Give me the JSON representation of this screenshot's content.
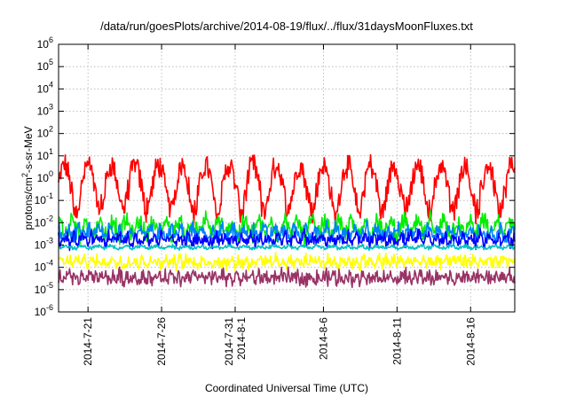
{
  "chart_data": {
    "type": "line",
    "title": "/data/run/goesPlots/archive/2014-08-19/flux/../flux/31daysMoonFluxes.txt",
    "xlabel": "Coordinated Universal Time (UTC)",
    "ylabel_prefix": "protons/cm",
    "ylabel_sup": "2",
    "ylabel_suffix": "-s-sr-MeV",
    "y_scale": "log",
    "ylim": [
      1e-06,
      1000000.0
    ],
    "y_ticks": [
      {
        "base": "10",
        "exp": "-6",
        "value": 1e-06
      },
      {
        "base": "10",
        "exp": "-5",
        "value": 1e-05
      },
      {
        "base": "10",
        "exp": "-4",
        "value": 0.0001
      },
      {
        "base": "10",
        "exp": "-3",
        "value": 0.001
      },
      {
        "base": "10",
        "exp": "-2",
        "value": 0.01
      },
      {
        "base": "10",
        "exp": "-1",
        "value": 0.1
      },
      {
        "base": "10",
        "exp": "0",
        "value": 1
      },
      {
        "base": "10",
        "exp": "1",
        "value": 10
      },
      {
        "base": "10",
        "exp": "2",
        "value": 100
      },
      {
        "base": "10",
        "exp": "3",
        "value": 1000
      },
      {
        "base": "10",
        "exp": "4",
        "value": 10000
      },
      {
        "base": "10",
        "exp": "5",
        "value": 100000
      },
      {
        "base": "10",
        "exp": "6",
        "value": 1000000
      }
    ],
    "xlim": [
      "2014-07-19",
      "2014-08-19"
    ],
    "x_ticks": [
      {
        "date": "2014-07-21",
        "labels": [
          "2014-7-21"
        ]
      },
      {
        "date": "2014-07-26",
        "labels": [
          "2014-7-26"
        ]
      },
      {
        "date": "2014-07-31",
        "labels": [
          "2014-7-31",
          "2014-8-1"
        ]
      },
      {
        "date": "2014-08-06",
        "labels": [
          "2014-8-6"
        ]
      },
      {
        "date": "2014-08-11",
        "labels": [
          "2014-8-11"
        ]
      },
      {
        "date": "2014-08-16",
        "labels": [
          "2014-8-16"
        ]
      }
    ],
    "grid": true,
    "legend": "none",
    "series": [
      {
        "color": "#ff0000",
        "center": 0.5,
        "spread": 1.0,
        "oscillation": 0.9,
        "period_days": 1.6,
        "noise": 0.25
      },
      {
        "color": "#00ee00",
        "center": 0.006,
        "spread": 0.7,
        "oscillation": 0.3,
        "period_days": 0.9,
        "noise": 0.35
      },
      {
        "color": "#0080ff",
        "center": 0.0035,
        "spread": 0.5,
        "oscillation": 0.2,
        "period_days": 0.7,
        "noise": 0.3
      },
      {
        "color": "#0000ff",
        "center": 0.0018,
        "spread": 0.45,
        "oscillation": 0.15,
        "period_days": 0.6,
        "noise": 0.3
      },
      {
        "color": "#00c0c0",
        "center": 0.0008,
        "spread": 0.12,
        "oscillation": 0.05,
        "period_days": 1.0,
        "noise": 0.08
      },
      {
        "color": "#ffff00",
        "center": 0.00018,
        "spread": 0.4,
        "oscillation": 0.1,
        "period_days": 0.5,
        "noise": 0.3
      },
      {
        "color": "#993366",
        "center": 3.5e-05,
        "spread": 0.5,
        "oscillation": 0.1,
        "period_days": 0.5,
        "noise": 0.35
      }
    ]
  }
}
